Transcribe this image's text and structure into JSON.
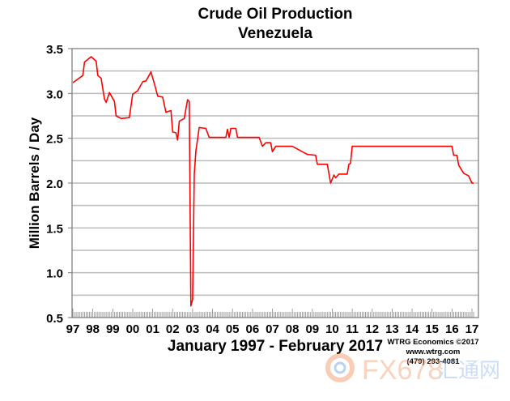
{
  "chart_data": {
    "type": "line",
    "title": "Crude Oil Production",
    "subtitle": "Venezuela",
    "xlabel": "January 1997 - February 2017",
    "ylabel": "Million Barrels / Day",
    "ylim": [
      0.5,
      3.5
    ],
    "yticks": [
      "3.5",
      "3.0",
      "2.5",
      "2.0",
      "1.5",
      "1.0",
      "0.5"
    ],
    "xticks": [
      "97",
      "98",
      "99",
      "00",
      "01",
      "02",
      "03",
      "04",
      "05",
      "06",
      "07",
      "08",
      "09",
      "10",
      "11",
      "12",
      "13",
      "14",
      "15",
      "16",
      "17"
    ],
    "xrange": [
      "1997-01",
      "2017-02"
    ],
    "grid": true,
    "line_color": "#ff0000",
    "series": [
      {
        "points": [
          [
            "1997-01",
            3.12
          ],
          [
            "1997-07",
            3.2
          ],
          [
            "1997-08",
            3.35
          ],
          [
            "1997-12",
            3.41
          ],
          [
            "1998-03",
            3.36
          ],
          [
            "1998-04",
            3.2
          ],
          [
            "1998-06",
            3.17
          ],
          [
            "1998-08",
            2.94
          ],
          [
            "1998-09",
            2.9
          ],
          [
            "1998-11",
            3.01
          ],
          [
            "1999-02",
            2.91
          ],
          [
            "1999-03",
            2.75
          ],
          [
            "1999-06",
            2.72
          ],
          [
            "1999-11",
            2.73
          ],
          [
            "2000-01",
            2.99
          ],
          [
            "2000-04",
            3.03
          ],
          [
            "2000-07",
            3.13
          ],
          [
            "2000-09",
            3.14
          ],
          [
            "2000-12",
            3.24
          ],
          [
            "2001-02",
            3.11
          ],
          [
            "2001-04",
            2.97
          ],
          [
            "2001-07",
            2.96
          ],
          [
            "2001-09",
            2.79
          ],
          [
            "2001-12",
            2.81
          ],
          [
            "2002-01",
            2.57
          ],
          [
            "2002-03",
            2.56
          ],
          [
            "2002-04",
            2.48
          ],
          [
            "2002-05",
            2.69
          ],
          [
            "2002-08",
            2.72
          ],
          [
            "2002-10",
            2.93
          ],
          [
            "2002-11",
            2.91
          ],
          [
            "2002-12",
            0.63
          ],
          [
            "2003-01",
            0.7
          ],
          [
            "2003-02",
            2.1
          ],
          [
            "2003-03",
            2.36
          ],
          [
            "2003-05",
            2.62
          ],
          [
            "2003-09",
            2.61
          ],
          [
            "2003-11",
            2.51
          ],
          [
            "2004-09",
            2.51
          ],
          [
            "2004-10",
            2.6
          ],
          [
            "2004-11",
            2.51
          ],
          [
            "2004-12",
            2.61
          ],
          [
            "2005-03",
            2.61
          ],
          [
            "2005-04",
            2.51
          ],
          [
            "2006-05",
            2.51
          ],
          [
            "2006-07",
            2.41
          ],
          [
            "2006-09",
            2.45
          ],
          [
            "2006-12",
            2.45
          ],
          [
            "2007-01",
            2.35
          ],
          [
            "2007-03",
            2.41
          ],
          [
            "2008-01",
            2.41
          ],
          [
            "2008-10",
            2.32
          ],
          [
            "2009-03",
            2.31
          ],
          [
            "2009-04",
            2.21
          ],
          [
            "2009-10",
            2.21
          ],
          [
            "2009-12",
            2.0
          ],
          [
            "2010-02",
            2.09
          ],
          [
            "2010-03",
            2.06
          ],
          [
            "2010-05",
            2.1
          ],
          [
            "2010-10",
            2.1
          ],
          [
            "2010-11",
            2.21
          ],
          [
            "2010-12",
            2.22
          ],
          [
            "2011-01",
            2.41
          ],
          [
            "2016-01",
            2.41
          ],
          [
            "2016-02",
            2.31
          ],
          [
            "2016-04",
            2.31
          ],
          [
            "2016-05",
            2.2
          ],
          [
            "2016-08",
            2.11
          ],
          [
            "2016-11",
            2.08
          ],
          [
            "2017-01",
            2.0
          ],
          [
            "2017-02",
            2.0
          ]
        ]
      }
    ]
  },
  "credits": {
    "line1": "WTRG Economics  ©2017",
    "line2": "www.wtrg.com",
    "line3": "(479) 293-4081"
  },
  "watermark": {
    "text": "FX678",
    "cjk": "汇通网"
  }
}
